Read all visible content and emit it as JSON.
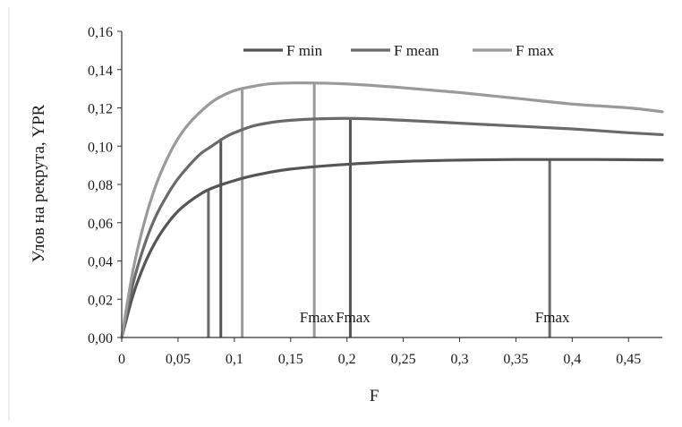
{
  "chart_data": {
    "type": "line",
    "xlabel": "F",
    "ylabel": "Улов на рекрута,  YPR",
    "xlim": [
      0,
      0.48
    ],
    "ylim": [
      0,
      0.16
    ],
    "x_ticks": [
      "0",
      "0,05",
      "0,1",
      "0,15",
      "0,2",
      "0,25",
      "0,3",
      "0,35",
      "0,4",
      "0,45"
    ],
    "x_tick_values": [
      0,
      0.05,
      0.1,
      0.15,
      0.2,
      0.25,
      0.3,
      0.35,
      0.4,
      0.45
    ],
    "y_ticks": [
      "0,00",
      "0,02",
      "0,04",
      "0,06",
      "0,08",
      "0,10",
      "0,12",
      "0,14",
      "0,16"
    ],
    "y_tick_values": [
      0,
      0.02,
      0.04,
      0.06,
      0.08,
      0.1,
      0.12,
      0.14,
      0.16
    ],
    "grid": false,
    "legend_position": "top-center",
    "series": [
      {
        "name": "F min",
        "color": "#555555",
        "x": [
          0,
          0.01,
          0.02,
          0.03,
          0.04,
          0.05,
          0.06,
          0.07,
          0.08,
          0.1,
          0.12,
          0.15,
          0.2,
          0.25,
          0.3,
          0.35,
          0.38,
          0.42,
          0.48
        ],
        "y": [
          0,
          0.022,
          0.038,
          0.05,
          0.059,
          0.066,
          0.071,
          0.075,
          0.078,
          0.082,
          0.085,
          0.088,
          0.0905,
          0.092,
          0.0927,
          0.093,
          0.093,
          0.093,
          0.0928
        ]
      },
      {
        "name": "F mean",
        "color": "#6a6a6a",
        "x": [
          0,
          0.01,
          0.02,
          0.03,
          0.04,
          0.05,
          0.06,
          0.07,
          0.08,
          0.09,
          0.1,
          0.12,
          0.15,
          0.2,
          0.25,
          0.3,
          0.35,
          0.4,
          0.45,
          0.48
        ],
        "y": [
          0,
          0.028,
          0.048,
          0.063,
          0.074,
          0.083,
          0.09,
          0.096,
          0.1,
          0.104,
          0.107,
          0.111,
          0.1135,
          0.1145,
          0.1135,
          0.112,
          0.1105,
          0.109,
          0.107,
          0.106
        ]
      },
      {
        "name": "F max",
        "color": "#9a9a9a",
        "x": [
          0,
          0.01,
          0.02,
          0.03,
          0.04,
          0.05,
          0.06,
          0.07,
          0.08,
          0.09,
          0.1,
          0.11,
          0.13,
          0.15,
          0.17,
          0.2,
          0.25,
          0.3,
          0.35,
          0.4,
          0.45,
          0.48
        ],
        "y": [
          0,
          0.035,
          0.06,
          0.079,
          0.093,
          0.104,
          0.112,
          0.118,
          0.123,
          0.1265,
          0.129,
          0.1305,
          0.1325,
          0.133,
          0.133,
          0.1325,
          0.1305,
          0.128,
          0.125,
          0.122,
          0.12,
          0.118
        ]
      }
    ],
    "reference_lines": [
      {
        "series": "F min",
        "x": 0.077,
        "y": 0.077,
        "color": "#6a6a6a"
      },
      {
        "series": "F mean",
        "x": 0.088,
        "y": 0.104,
        "color": "#555555"
      },
      {
        "series": "F max",
        "x": 0.107,
        "y": 0.1295,
        "color": "#9a9a9a"
      },
      {
        "series": "F max",
        "x": 0.171,
        "y": 0.133,
        "color": "#9a9a9a"
      },
      {
        "series": "F mean",
        "x": 0.203,
        "y": 0.1145,
        "color": "#555555"
      },
      {
        "series": "F min",
        "x": 0.38,
        "y": 0.093,
        "color": "#6a6a6a"
      }
    ],
    "annotations": [
      {
        "text": "Fmax",
        "x": 0.171,
        "y": 0.008
      },
      {
        "text": "Fmax",
        "x": 0.203,
        "y": 0.008
      },
      {
        "text": "Fmax",
        "x": 0.38,
        "y": 0.008
      }
    ]
  }
}
